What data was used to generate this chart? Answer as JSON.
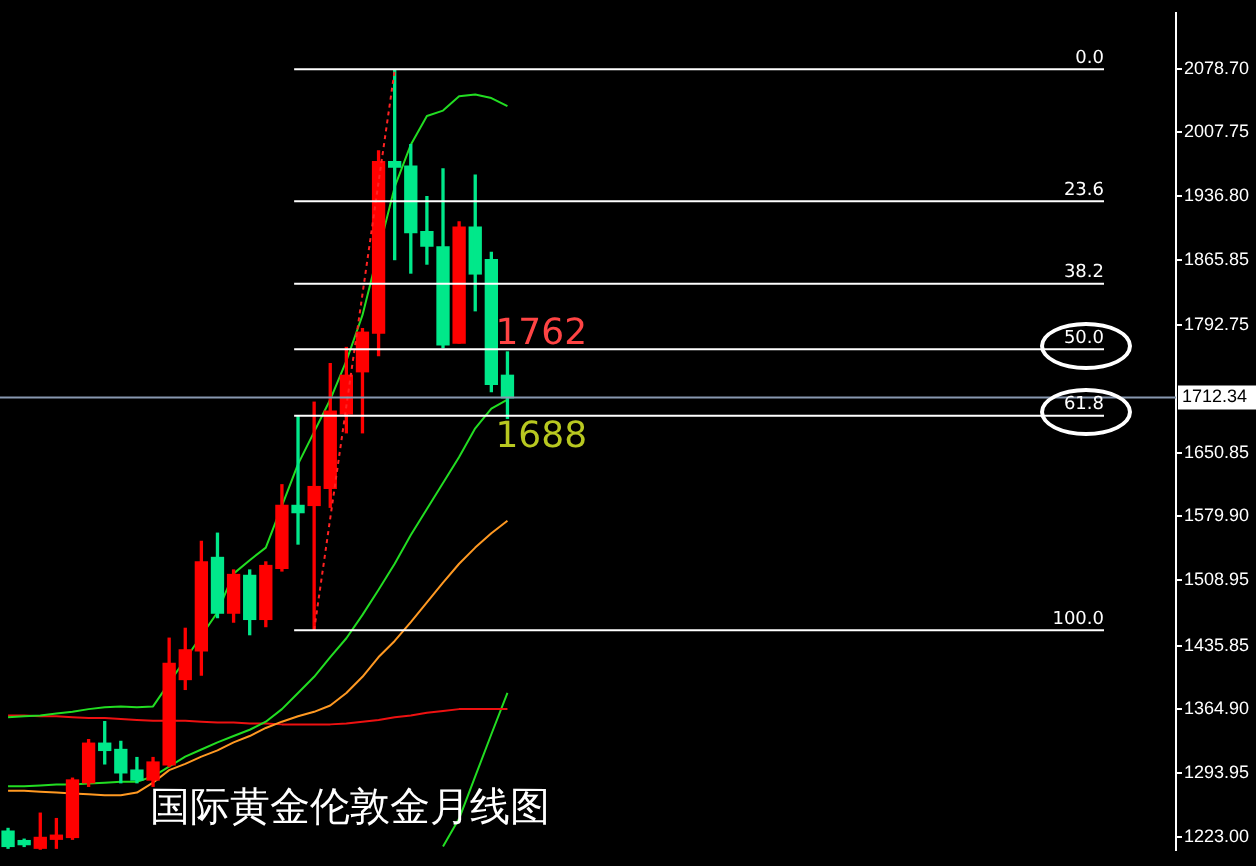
{
  "chart_data": {
    "type": "candlestick",
    "title": "国际黄金伦敦金月线图",
    "categories": [
      null,
      null,
      null,
      null,
      null,
      null,
      null,
      null,
      null,
      null,
      null,
      null,
      null,
      null,
      null,
      null,
      null,
      null,
      null,
      null,
      null,
      null,
      null,
      null,
      null,
      null,
      null,
      null,
      null,
      null,
      null,
      null,
      null,
      null,
      null,
      null,
      null,
      null,
      null,
      null,
      null,
      null,
      null,
      null,
      null,
      null,
      null,
      null,
      null,
      null,
      null,
      null,
      null,
      null,
      null,
      null,
      null,
      null,
      null,
      null,
      null,
      null,
      null,
      null,
      null,
      null,
      null,
      null,
      null,
      null,
      null,
      null,
      null
    ],
    "ohlc": [
      [
        1229,
        1232,
        1210,
        1212
      ],
      [
        1216,
        1220,
        1212,
        1214
      ],
      [
        1210,
        1249,
        1209,
        1222
      ],
      [
        1220,
        1243,
        1210,
        1223
      ],
      [
        1222,
        1288,
        1220,
        1286
      ],
      [
        1283,
        1331,
        1279,
        1327
      ],
      [
        1327,
        1351,
        1304,
        1319
      ],
      [
        1320,
        1329,
        1283,
        1294
      ],
      [
        1297,
        1311,
        1283,
        1286
      ],
      [
        1286,
        1311,
        1279,
        1306
      ],
      [
        1303,
        1444,
        1301,
        1416
      ],
      [
        1398,
        1455,
        1387,
        1431
      ],
      [
        1430,
        1552,
        1403,
        1529
      ],
      [
        1534,
        1561,
        1467,
        1472
      ],
      [
        1472,
        1520,
        1462,
        1515
      ],
      [
        1514,
        1520,
        1448,
        1465
      ],
      [
        1465,
        1529,
        1457,
        1525
      ],
      [
        1522,
        1615,
        1519,
        1592
      ],
      [
        1592,
        1692,
        1549,
        1584
      ],
      [
        1592,
        1707,
        1453,
        1613
      ],
      [
        1611,
        1750,
        1590,
        1697
      ],
      [
        1694,
        1768,
        1673,
        1737
      ],
      [
        1741,
        1789,
        1673,
        1785
      ],
      [
        1784,
        1987,
        1759,
        1975
      ],
      [
        1975,
        2077,
        1866,
        1969
      ],
      [
        1970,
        1994,
        1851,
        1896
      ],
      [
        1897,
        1936,
        1861,
        1881
      ],
      [
        1880,
        1967,
        1768,
        1771
      ],
      [
        1773,
        1908,
        1773,
        1902
      ],
      [
        1902,
        1960,
        1809,
        1850
      ],
      [
        1866,
        1874,
        1719,
        1727
      ],
      [
        1737,
        1763,
        1689,
        1712
      ],
      null,
      null,
      null,
      null,
      null,
      null,
      null,
      null,
      null,
      null,
      null,
      null,
      null,
      null,
      null,
      null,
      null,
      null,
      null,
      null,
      null,
      null,
      null,
      null,
      null,
      null,
      null,
      null,
      null,
      null,
      null,
      null,
      null,
      null,
      null,
      null,
      null,
      null,
      null,
      null,
      null
    ],
    "colors": [
      "#00e88a",
      "#00e88a",
      "#ff0000",
      "#ff0000",
      "#ff0000",
      "#ff0000",
      "#00e88a",
      "#00e88a",
      "#00e88a",
      "#ff0000",
      "#ff0000",
      "#ff0000",
      "#ff0000",
      "#00e88a",
      "#ff0000",
      "#00e88a",
      "#ff0000",
      "#ff0000",
      "#00e88a",
      "#ff0000",
      "#ff0000",
      "#ff0000",
      "#ff0000",
      "#ff0000",
      "#00e88a",
      "#00e88a",
      "#00e88a",
      "#00e88a",
      "#ff0000",
      "#00e88a",
      "#00e88a",
      "#00e88a",
      null,
      null,
      null,
      null,
      null,
      null,
      null,
      null,
      null,
      null,
      null,
      null,
      null,
      null,
      null,
      null,
      null,
      null,
      null,
      null,
      null,
      null,
      null,
      null,
      null,
      null,
      null,
      null,
      null,
      null,
      null,
      null,
      null,
      null,
      null,
      null,
      null,
      null,
      null,
      null,
      null
    ],
    "series": [
      {
        "type": "line",
        "color": "#22dd22",
        "values": [
          1356,
          1357,
          1358,
          1360,
          1362,
          1365,
          1367,
          1368,
          1367,
          1368,
          null,
          null,
          null,
          1473,
          1516,
          1531,
          1545,
          null,
          1638,
          1674,
          1710,
          1753,
          1804,
          null,
          1947,
          1994,
          2026,
          2032,
          2048,
          2050,
          2046,
          2037,
          null,
          null,
          null,
          null,
          null,
          null,
          null,
          null,
          null,
          null,
          null,
          null,
          null,
          null,
          null,
          null,
          null,
          null,
          null,
          null,
          null,
          null,
          null,
          null,
          null,
          null,
          null,
          null,
          null,
          null,
          null,
          null,
          null,
          null,
          null,
          null,
          null,
          null,
          null,
          null,
          null
        ]
      },
      {
        "type": "line",
        "color": "#22dd22",
        "values": [
          1279,
          1279,
          1280,
          1281,
          1281,
          1282,
          1283,
          1284,
          1284,
          1290,
          1301,
          1312,
          1320,
          1328,
          1335,
          1342,
          1351,
          1365,
          1383,
          1401,
          1423,
          1444,
          1470,
          1498,
          1527,
          1559,
          1588,
          1617,
          1646,
          1678,
          1700,
          1710,
          null,
          null,
          null,
          null,
          null,
          null,
          null,
          null,
          null,
          null,
          null,
          null,
          null,
          null,
          null,
          null,
          null,
          null,
          null,
          null,
          null,
          null,
          null,
          null,
          null,
          null,
          null,
          null,
          null,
          null,
          null,
          null,
          null,
          null,
          null,
          null,
          null,
          null,
          null,
          null,
          null
        ]
      },
      {
        "type": "line",
        "color": "#ff9922",
        "values": [
          1274,
          1274,
          1273,
          1272,
          1271,
          1270,
          1269,
          1269,
          1272,
          1283,
          1297,
          1304,
          1312,
          1319,
          1328,
          1335,
          1344,
          1351,
          1357,
          1362,
          1369,
          1383,
          1401,
          1423,
          1441,
          1462,
          1484,
          1506,
          1527,
          1545,
          1561,
          1575,
          null,
          null,
          null,
          null,
          null,
          null,
          null,
          null,
          null,
          null,
          null,
          null,
          null,
          null,
          null,
          null,
          null,
          null,
          null,
          null,
          null,
          null,
          null,
          null,
          null,
          null,
          null,
          null,
          null,
          null,
          null,
          null,
          null,
          null,
          null,
          null,
          null,
          null,
          null,
          null,
          null
        ]
      },
      {
        "type": "line",
        "color": "#ee1111",
        "values": [
          1358,
          1358,
          1357,
          1357,
          1356,
          1355,
          1355,
          1354,
          1353,
          1352,
          1352,
          1352,
          1351,
          1350,
          1350,
          1349,
          1349,
          1348,
          1348,
          1348,
          1348,
          1349,
          1351,
          1353,
          1356,
          1358,
          1361,
          1363,
          1365,
          1365,
          1365,
          1365,
          null,
          null,
          null,
          null,
          null,
          null,
          null,
          null,
          null,
          null,
          null,
          null,
          null,
          null,
          null,
          null,
          null,
          null,
          null,
          null,
          null,
          null,
          null,
          null,
          null,
          null,
          null,
          null,
          null,
          null,
          null,
          null,
          null,
          null,
          null,
          null,
          null,
          null,
          null,
          null,
          null
        ]
      },
      {
        "type": "line",
        "color": "#22dd22",
        "values": [
          null,
          null,
          null,
          null,
          null,
          null,
          null,
          null,
          null,
          null,
          null,
          null,
          null,
          null,
          null,
          null,
          null,
          null,
          null,
          null,
          null,
          null,
          null,
          null,
          null,
          null,
          null,
          1212,
          1243,
          1290,
          1337,
          1383,
          null,
          null,
          null,
          null,
          null,
          null,
          null,
          null,
          null,
          null,
          null,
          null,
          null,
          null,
          null,
          null,
          null,
          null,
          null,
          null,
          null,
          null,
          null,
          null,
          null,
          null,
          null,
          null,
          null,
          null,
          null,
          null,
          null,
          null,
          null,
          null,
          null,
          null,
          null,
          null,
          null
        ]
      },
      {
        "type": "line",
        "color": "#ff2222",
        "line_style": "dotted",
        "values": [
          null,
          null,
          null,
          null,
          null,
          null,
          null,
          null,
          null,
          null,
          null,
          null,
          null,
          null,
          null,
          null,
          null,
          null,
          null,
          1453,
          null,
          null,
          null,
          null,
          2077,
          null,
          null,
          null,
          null,
          null,
          null,
          null,
          null,
          null,
          null,
          null,
          null,
          null,
          null,
          null,
          null,
          null,
          null,
          null,
          null,
          null,
          null,
          null,
          null,
          null,
          null,
          null,
          null,
          null,
          null,
          null,
          null,
          null,
          null,
          null,
          null,
          null,
          null,
          null,
          null,
          null,
          null,
          null,
          null,
          null,
          null,
          null,
          null
        ]
      }
    ],
    "ylim": [
      1208,
      2141
    ],
    "yticks": [
      {
        "value": 2078.7,
        "label": "2078.70"
      },
      {
        "value": 2007.75,
        "label": "2007.75"
      },
      {
        "value": 1936.8,
        "label": "1936.80"
      },
      {
        "value": 1865.85,
        "label": "1865.85"
      },
      {
        "value": 1792.75,
        "label": "1792.75"
      },
      {
        "value": 1650.85,
        "label": "1650.85"
      },
      {
        "value": 1579.9,
        "label": "1579.90"
      },
      {
        "value": 1508.95,
        "label": "1508.95"
      },
      {
        "value": 1435.85,
        "label": "1435.85"
      },
      {
        "value": 1364.9,
        "label": "1364.90"
      },
      {
        "value": 1293.95,
        "label": "1293.95"
      },
      {
        "value": 1223,
        "label": "1223.00"
      }
    ],
    "tick_labels": "y",
    "marker": "none",
    "ref_lines": [
      {
        "axis": "y",
        "value": 2078,
        "color": "#ffffff"
      },
      {
        "axis": "y",
        "value": 1931,
        "color": "#ffffff"
      },
      {
        "axis": "y",
        "value": 1839,
        "color": "#ffffff"
      },
      {
        "axis": "y",
        "value": 1766,
        "color": "#ffffff"
      },
      {
        "axis": "y",
        "value": 1692,
        "color": "#ffffff"
      },
      {
        "axis": "y",
        "value": 1453,
        "color": "#ffffff"
      },
      {
        "axis": "y",
        "value": 1712.34,
        "label": "1712.34",
        "color": "#8898b0"
      }
    ],
    "annotations": [
      {
        "text": "0.0",
        "y": 2078
      },
      {
        "text": "23.6",
        "y": 1931
      },
      {
        "text": "38.2",
        "y": 1839
      },
      {
        "text": "50.0",
        "y": 1766
      },
      {
        "text": "61.8",
        "y": 1692
      },
      {
        "text": "100.0",
        "y": 1453
      },
      {
        "text": "1762",
        "y": 1762
      },
      {
        "text": "1688",
        "y": 1688
      }
    ]
  }
}
